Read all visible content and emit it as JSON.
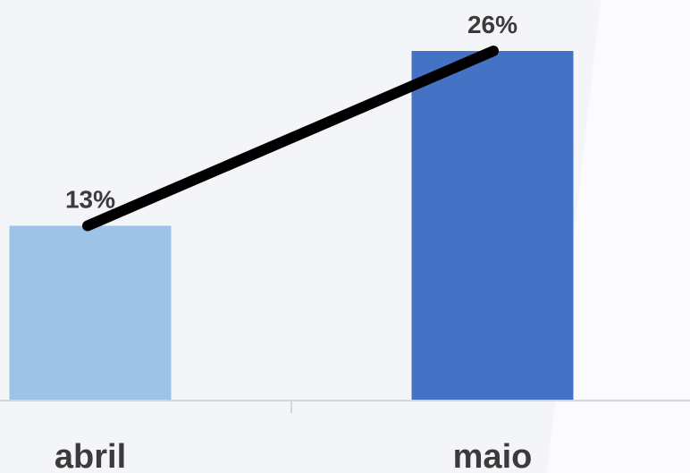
{
  "chart_data": {
    "type": "bar",
    "categories": [
      "abril",
      "maio"
    ],
    "values": [
      13,
      26
    ],
    "value_labels": [
      "13%",
      "26%"
    ],
    "bar_colors": [
      "#9dc3e6",
      "#4472c4"
    ],
    "trend_line_color": "#000000",
    "ylim": [
      0,
      26
    ],
    "grid": false,
    "legend": "none"
  }
}
